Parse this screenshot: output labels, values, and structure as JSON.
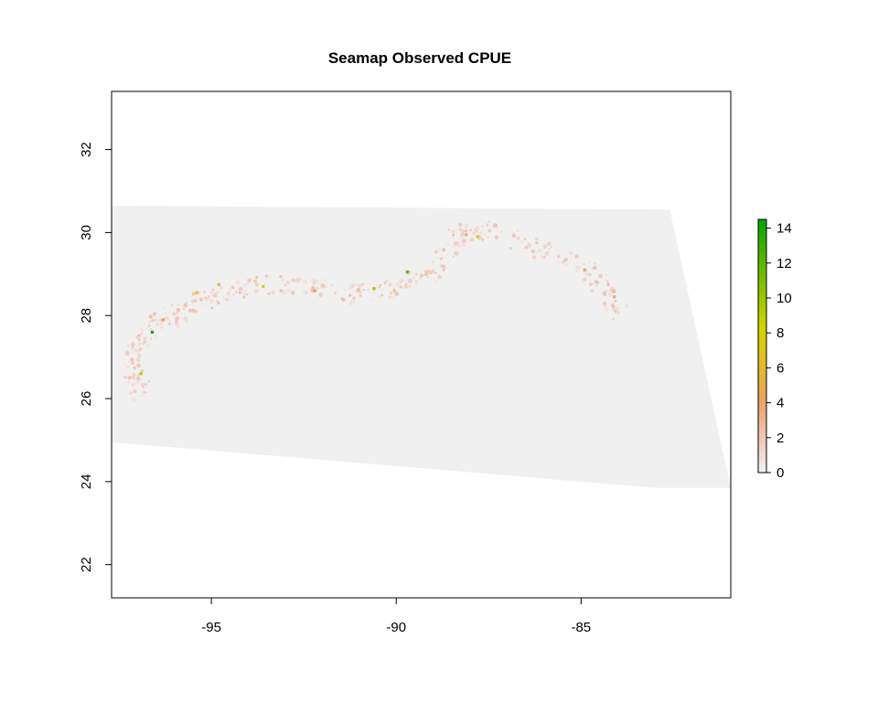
{
  "chart_data": {
    "type": "heatmap",
    "title": "Seamap Observed CPUE",
    "xlabel": "",
    "ylabel": "",
    "xlim": [
      -97.7,
      -80.95
    ],
    "ylim": [
      21.2,
      33.4
    ],
    "x_ticks": [
      -95,
      -90,
      -85
    ],
    "x_tick_labels": [
      "-95",
      "-90",
      "-85"
    ],
    "y_ticks": [
      22,
      24,
      26,
      28,
      30,
      32
    ],
    "y_tick_labels": [
      "22",
      "24",
      "26",
      "28",
      "30",
      "32"
    ],
    "grid": false,
    "legend": {
      "placement": "right",
      "min": 0,
      "max": 14.5,
      "ticks": [
        0,
        2,
        4,
        6,
        8,
        10,
        12,
        14
      ],
      "tick_labels": [
        "0",
        "2",
        "4",
        "6",
        "8",
        "10",
        "12",
        "14"
      ],
      "colors": [
        "#f2f2f2",
        "#f1c3b3",
        "#e9a35c",
        "#e3bd2b",
        "#d2d400",
        "#8fc400",
        "#4fb300",
        "#00a600"
      ]
    },
    "domain_color": "#f0f0f0",
    "domain_polygon": [
      [
        -97.7,
        30.65
      ],
      [
        -82.6,
        30.55
      ],
      [
        -80.95,
        23.85
      ],
      [
        -83.0,
        23.85
      ],
      [
        -97.7,
        24.95
      ]
    ],
    "hotspot_track": [
      [
        -96.8,
        26.1
      ],
      [
        -97.1,
        26.5
      ],
      [
        -97.1,
        27.0
      ],
      [
        -96.9,
        27.45
      ],
      [
        -96.4,
        27.8
      ],
      [
        -95.8,
        28.05
      ],
      [
        -95.2,
        28.35
      ],
      [
        -94.5,
        28.55
      ],
      [
        -93.8,
        28.7
      ],
      [
        -93.0,
        28.75
      ],
      [
        -92.0,
        28.65
      ],
      [
        -91.0,
        28.5
      ],
      [
        -90.2,
        28.6
      ],
      [
        -89.6,
        28.75
      ],
      [
        -89.0,
        29.05
      ],
      [
        -88.6,
        29.55
      ],
      [
        -88.3,
        29.9
      ],
      [
        -87.8,
        30.05
      ],
      [
        -87.0,
        29.95
      ],
      [
        -86.0,
        29.6
      ],
      [
        -85.2,
        29.25
      ],
      [
        -84.6,
        28.9
      ],
      [
        -84.2,
        28.5
      ],
      [
        -84.0,
        28.0
      ]
    ],
    "hotspots": [
      {
        "x": -96.6,
        "y": 27.6,
        "v": 14.0
      },
      {
        "x": -95.4,
        "y": 28.55,
        "v": 6.0
      },
      {
        "x": -94.8,
        "y": 28.75,
        "v": 5.0
      },
      {
        "x": -93.6,
        "y": 28.7,
        "v": 8.0
      },
      {
        "x": -92.2,
        "y": 28.6,
        "v": 4.0
      },
      {
        "x": -90.6,
        "y": 28.65,
        "v": 10.0
      },
      {
        "x": -89.7,
        "y": 29.05,
        "v": 12.0
      },
      {
        "x": -88.1,
        "y": 29.95,
        "v": 3.0
      },
      {
        "x": -87.8,
        "y": 29.9,
        "v": 7.0
      },
      {
        "x": -84.9,
        "y": 29.1,
        "v": 4.0
      },
      {
        "x": -84.1,
        "y": 28.45,
        "v": 3.5
      },
      {
        "x": -96.9,
        "y": 26.6,
        "v": 9.0
      },
      {
        "x": -96.3,
        "y": 27.9,
        "v": 4.5
      }
    ]
  }
}
